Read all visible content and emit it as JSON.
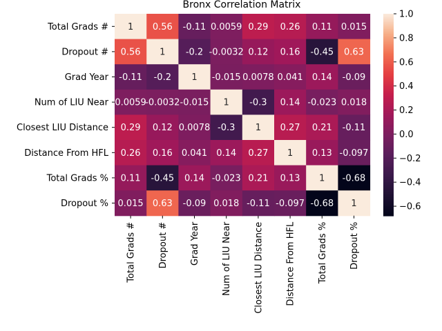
{
  "chart_data": {
    "type": "heatmap",
    "title": "Bronx Correlation Matrix",
    "labels": [
      "Total Grads #",
      "Dropout #",
      "Grad Year",
      "Num of LIU Near",
      "Closest LIU Distance",
      "Distance From HFL",
      "Total Grads %",
      "Dropout %"
    ],
    "matrix": [
      [
        1,
        0.56,
        -0.11,
        0.0059,
        0.29,
        0.26,
        0.11,
        0.015
      ],
      [
        0.56,
        1,
        -0.2,
        -0.0032,
        0.12,
        0.16,
        -0.45,
        0.63
      ],
      [
        -0.11,
        -0.2,
        1,
        -0.015,
        0.0078,
        0.041,
        0.14,
        -0.09
      ],
      [
        0.0059,
        -0.0032,
        -0.015,
        1,
        -0.3,
        0.14,
        -0.023,
        0.018
      ],
      [
        0.29,
        0.12,
        0.0078,
        -0.3,
        1,
        0.27,
        0.21,
        -0.11
      ],
      [
        0.26,
        0.16,
        0.041,
        0.14,
        0.27,
        1,
        0.13,
        -0.097
      ],
      [
        0.11,
        -0.45,
        0.14,
        -0.023,
        0.21,
        0.13,
        1,
        -0.68
      ],
      [
        0.015,
        0.63,
        -0.09,
        0.018,
        -0.11,
        -0.097,
        -0.68,
        1
      ]
    ],
    "colorbar": {
      "range": [
        -0.68,
        1.0
      ],
      "ticks": [
        1.0,
        0.8,
        0.6,
        0.4,
        0.2,
        0.0,
        -0.2,
        -0.4,
        -0.6
      ],
      "tick_labels": [
        "1.0",
        "0.8",
        "0.6",
        "0.4",
        "0.2",
        "0.0",
        "−0.2",
        "−0.4",
        "−0.6"
      ],
      "colormap": "rocket"
    }
  }
}
